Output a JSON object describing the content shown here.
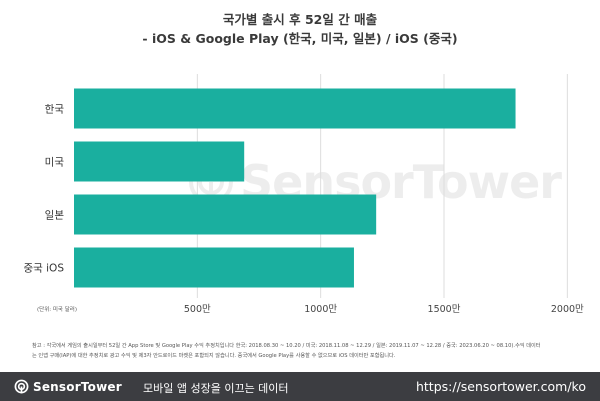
{
  "title_line1": "국가별 출시 후 52일 간 매출",
  "title_line2": "- iOS & Google Play (한국, 미국, 일본) / iOS (중국)",
  "unit_label": "(단위: 미국 달러)",
  "watermark_text": "SensorTower",
  "note_line1": "참고 : 각국에서 게임의 출시일부터 52일 간 App Store 및 Google Play 수익 추정치입니다 한국: 2018.08.30 ~ 10.20 / 미국: 2018.11.08 ~ 12.29 / 일본: 2019.11.07 ~ 12.28 / 중국: 2023.06.20 ~ 08.10).수익 데이터",
  "note_line2": "는 인앱 구매(IAP)에 대한 추정치로 광고 수익 및 제3자 안드로이드 마켓은 포함되지 않습니다. 중국에서 Google Play를 사용할 수 없으므로 iOS 데이터만 포함됩니다.",
  "footer": {
    "brand": "SensorTower",
    "tagline": "모바일 앱 성장을 이끄는 데이터",
    "url": "https://sensortower.com/ko"
  },
  "colors": {
    "bar": "#1aaf9f",
    "grid": "#dddddd",
    "footer_bg": "#3c3d41"
  },
  "chart_data": {
    "type": "bar",
    "orientation": "horizontal",
    "categories": [
      "한국",
      "미국",
      "일본",
      "중국 iOS"
    ],
    "values": [
      1790,
      690,
      1225,
      1135
    ],
    "xlim": [
      0,
      2100
    ],
    "ticks": [
      500,
      1000,
      1500,
      2000
    ],
    "tick_labels": [
      "500만",
      "1000만",
      "1500만",
      "2000만"
    ],
    "grid": true,
    "legend": "none"
  }
}
